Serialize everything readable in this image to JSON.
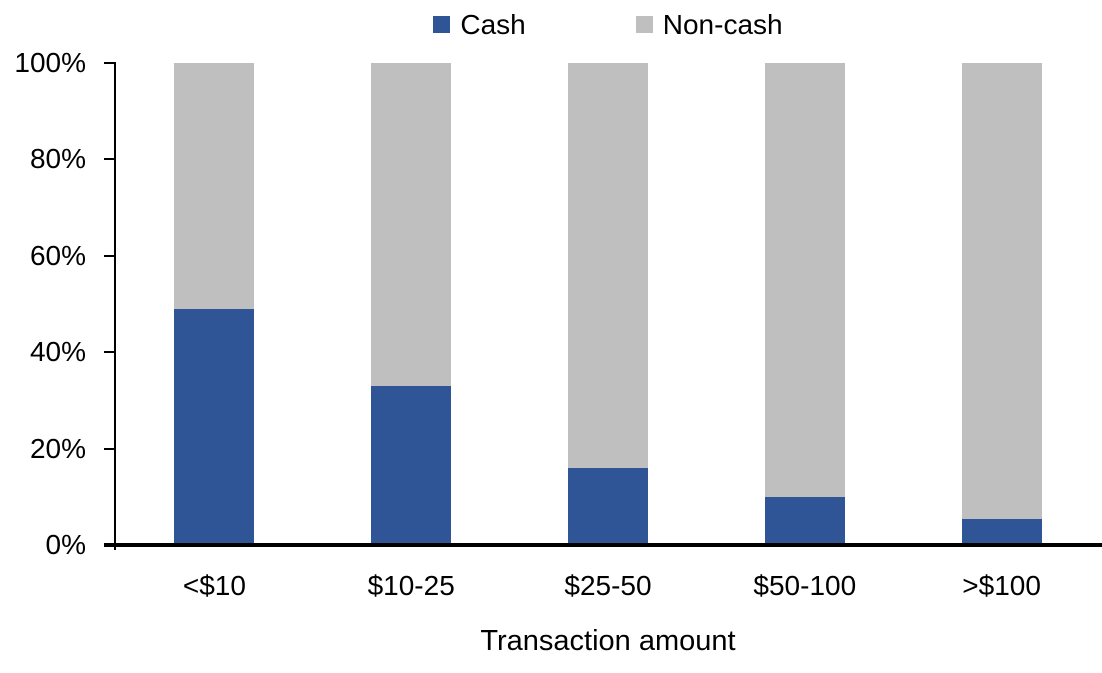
{
  "chart_data": {
    "type": "bar",
    "stacked": true,
    "title": "",
    "categories": [
      "<$10",
      "$10-25",
      "$25-50",
      "$50-100",
      ">$100"
    ],
    "series": [
      {
        "name": "Cash",
        "color": "#2F5597",
        "values": [
          49,
          33,
          16,
          10,
          5.5
        ]
      },
      {
        "name": "Non-cash",
        "color": "#BFBFBF",
        "values": [
          51,
          67,
          84,
          90,
          94.5
        ]
      }
    ],
    "xlabel": "Transaction amount",
    "ylabel": "",
    "ylim": [
      0,
      100
    ],
    "ytick_labels": [
      "0%",
      "20%",
      "40%",
      "60%",
      "80%",
      "100%"
    ],
    "legend_position": "top-center",
    "grid": false,
    "axis_color": "#000000",
    "background": "#FFFFFF",
    "text_color": "#000000"
  }
}
